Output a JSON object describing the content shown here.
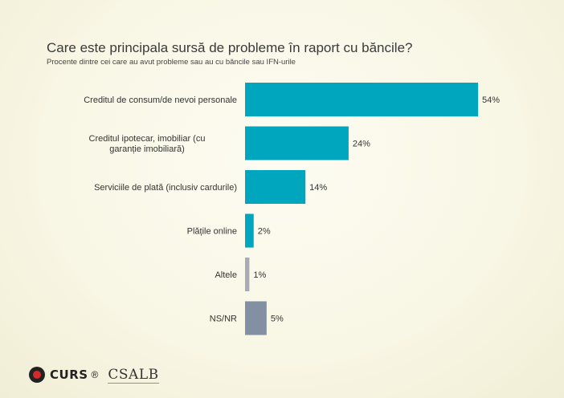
{
  "title": "Care este principala sursă de probleme în raport cu băncile?",
  "subtitle": "Procente dintre cei care au avut probleme sau au cu băncile sau IFN-urile",
  "logos": {
    "curs": "CURS",
    "registered": "®",
    "csalb": "CSALB"
  },
  "chart_data": {
    "type": "bar",
    "orientation": "horizontal",
    "categories": [
      "Creditul de consum/de nevoi personale",
      "Creditul ipotecar, imobiliar (cu garanție imobiliară)",
      "Serviciile de plată (inclusiv cardurile)",
      "Plățile online",
      "Altele",
      "NS/NR"
    ],
    "values": [
      54,
      24,
      14,
      2,
      1,
      5
    ],
    "value_labels": [
      "54%",
      "24%",
      "14%",
      "2%",
      "1%",
      "5%"
    ],
    "colors": [
      "#00a6be",
      "#00a6be",
      "#00a6be",
      "#00a6be",
      "#a9aab6",
      "#8390a3"
    ],
    "unit": "%",
    "xlim": [
      0,
      54
    ],
    "grid": false,
    "legend": "none"
  }
}
